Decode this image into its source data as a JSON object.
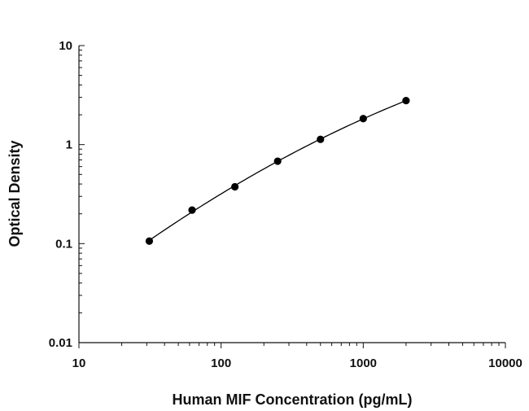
{
  "chart_data": {
    "type": "scatter",
    "title": "",
    "xlabel": "Human MIF Concentration (pg/mL)",
    "ylabel": "Optical Density",
    "x_scale": "log",
    "y_scale": "log",
    "xlim": [
      10,
      10000
    ],
    "ylim": [
      0.01,
      10
    ],
    "x_ticks": [
      "10",
      "100",
      "1000",
      "10000"
    ],
    "y_ticks": [
      "0.01",
      "0.1",
      "1",
      "10"
    ],
    "grid": false,
    "legend": "none",
    "series": [
      {
        "x": [
          31.25,
          62.5,
          125,
          250,
          500,
          1000,
          2000
        ],
        "y": [
          0.106,
          0.218,
          0.375,
          0.68,
          1.13,
          1.83,
          2.78
        ],
        "fit_line": true,
        "marker_color": "#000000",
        "line_color": "#000000"
      }
    ]
  }
}
